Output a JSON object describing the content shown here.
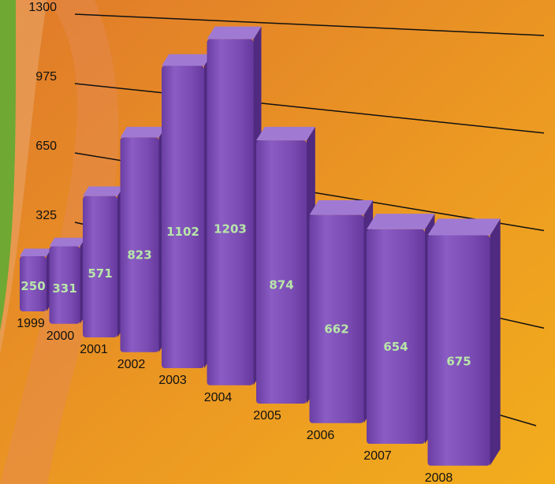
{
  "chart_data": {
    "type": "bar3d",
    "categories": [
      "1999",
      "2000",
      "2001",
      "2002",
      "2003",
      "2004",
      "2005",
      "2006",
      "2007",
      "2008"
    ],
    "values": [
      250,
      331,
      571,
      823,
      1102,
      1203,
      874,
      662,
      654,
      675
    ],
    "color": "#7b4cb3",
    "ylim": [
      0,
      1300
    ],
    "yticks": [
      325,
      650,
      975,
      1300
    ],
    "grid": true
  }
}
